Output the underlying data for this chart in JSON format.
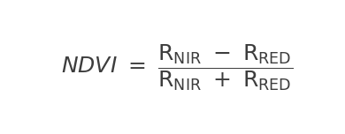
{
  "background_color": "#ffffff",
  "text_color": "#3d3d3d",
  "figsize": [
    3.9,
    1.52
  ],
  "dpi": 100,
  "formula": "$\\mathit{NDVI}\\ =\\ \\dfrac{\\mathrm{R}_{\\mathrm{NIR}}\\ -\\ \\mathrm{R}_{\\mathrm{RED}}}{\\mathrm{R}_{\\mathrm{NIR}}\\ +\\ \\mathrm{R}_{\\mathrm{RED}}}$",
  "fontsize": 18
}
